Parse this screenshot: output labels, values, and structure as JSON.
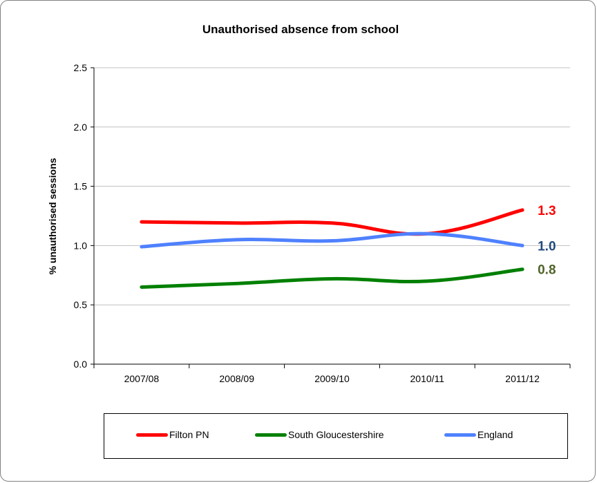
{
  "chart_data": {
    "type": "line",
    "title": "Unauthorised absence from school",
    "xlabel": "",
    "ylabel": "% unauthorised sessions",
    "categories": [
      "2007/08",
      "2008/09",
      "2009/10",
      "2010/11",
      "2011/12"
    ],
    "ylim": [
      0,
      2.5
    ],
    "yticks": [
      "0.0",
      "0.5",
      "1.0",
      "1.5",
      "2.0",
      "2.5"
    ],
    "grid": true,
    "legend_position": "bottom",
    "series": [
      {
        "name": "Filton PN",
        "color": "#ff0000",
        "values": [
          1.2,
          1.19,
          1.19,
          1.1,
          1.3
        ],
        "end_label": "1.3",
        "label_color": "#ff0000"
      },
      {
        "name": "South Gloucestershire",
        "color": "#008000",
        "values": [
          0.65,
          0.68,
          0.72,
          0.7,
          0.8
        ],
        "end_label": "0.8",
        "label_color": "#4f6228"
      },
      {
        "name": "England",
        "color": "#4f81ff",
        "values": [
          0.99,
          1.05,
          1.04,
          1.1,
          1.0
        ],
        "end_label": "1.0",
        "label_color": "#1f497d"
      }
    ]
  }
}
